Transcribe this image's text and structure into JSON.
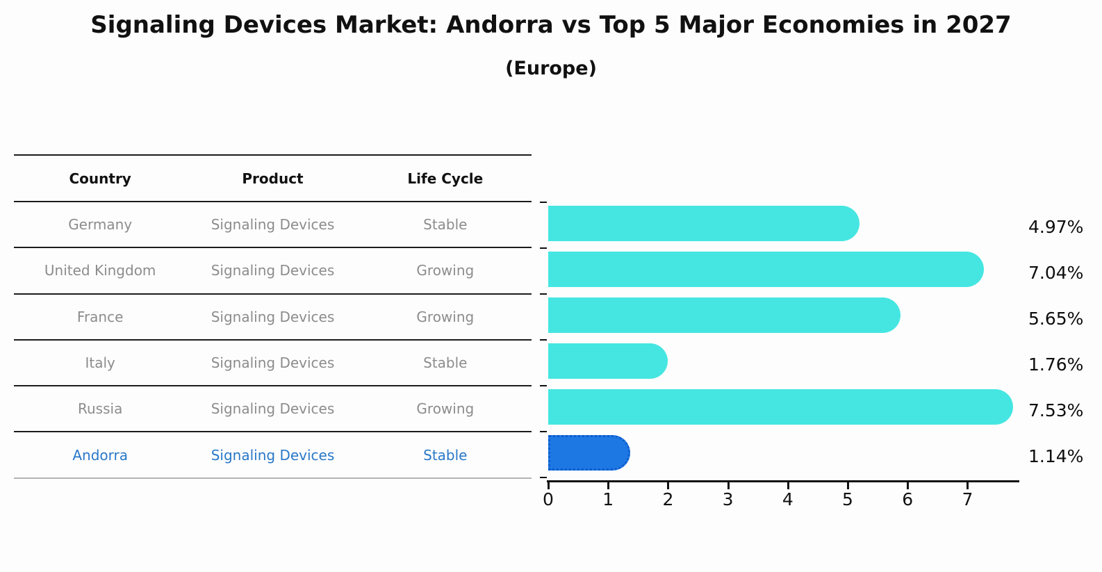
{
  "title": "Signaling Devices Market: Andorra vs Top 5 Major Economies in 2027",
  "subtitle": "(Europe)",
  "table": {
    "headers": [
      "Country",
      "Product",
      "Life Cycle"
    ],
    "rows": [
      {
        "country": "Germany",
        "product": "Signaling Devices",
        "life_cycle": "Stable",
        "highlight": false
      },
      {
        "country": "United Kingdom",
        "product": "Signaling Devices",
        "life_cycle": "Growing",
        "highlight": false
      },
      {
        "country": "France",
        "product": "Signaling Devices",
        "life_cycle": "Growing",
        "highlight": false
      },
      {
        "country": "Italy",
        "product": "Signaling Devices",
        "life_cycle": "Stable",
        "highlight": false
      },
      {
        "country": "Russia",
        "product": "Signaling Devices",
        "life_cycle": "Growing",
        "highlight": false
      },
      {
        "country": "Andorra",
        "product": "Signaling Devices",
        "life_cycle": "Stable",
        "highlight": true
      }
    ]
  },
  "chart_data": {
    "type": "bar",
    "orientation": "horizontal",
    "title": "Signaling Devices Market: Andorra vs Top 5 Major Economies in 2027 (Europe)",
    "categories": [
      "Germany",
      "United Kingdom",
      "France",
      "Italy",
      "Russia",
      "Andorra"
    ],
    "values": [
      4.97,
      7.04,
      5.65,
      1.76,
      7.53,
      1.14
    ],
    "value_labels": [
      "4.97%",
      "7.04%",
      "5.65%",
      "1.76%",
      "7.53%",
      "1.14%"
    ],
    "xlabel": "",
    "ylabel": "",
    "xlim": [
      0,
      7.9
    ],
    "xticks": [
      0,
      1,
      2,
      3,
      4,
      5,
      6,
      7
    ],
    "grid": false,
    "legend": false,
    "highlight_index": 5
  },
  "colors": {
    "bar": "#45e6e1",
    "highlight_bar": "#1e78e4",
    "highlight_border": "#0d5ccc",
    "highlight_text": "#2878c8",
    "table_text": "#8c8c8c",
    "text": "#111111"
  }
}
